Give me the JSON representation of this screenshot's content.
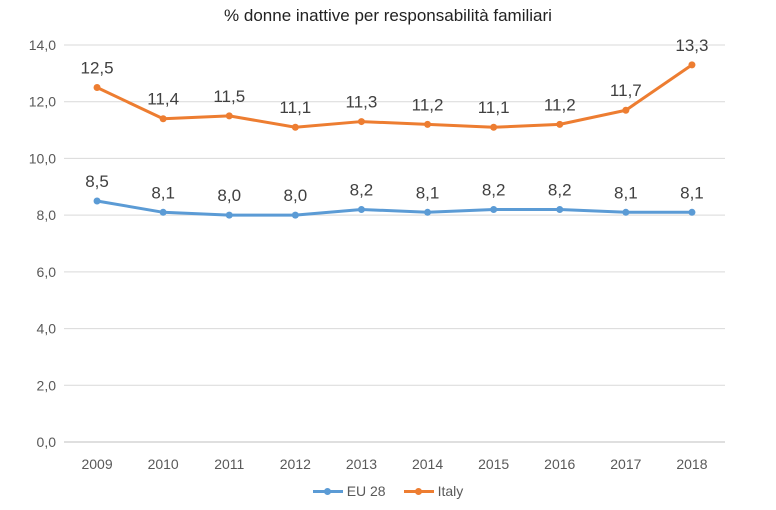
{
  "chart_data": {
    "type": "line",
    "title": "% donne inattive per responsabilità familiari",
    "categories": [
      "2009",
      "2010",
      "2011",
      "2012",
      "2013",
      "2014",
      "2015",
      "2016",
      "2017",
      "2018"
    ],
    "ylim": [
      0,
      14
    ],
    "yticks": [
      "0,0",
      "2,0",
      "4,0",
      "6,0",
      "8,0",
      "10,0",
      "12,0",
      "14,0"
    ],
    "grid": true,
    "legend_position": "bottom",
    "series": [
      {
        "name": "EU 28",
        "color": "#5b9bd5",
        "values": [
          8.5,
          8.1,
          8.0,
          8.0,
          8.2,
          8.1,
          8.2,
          8.2,
          8.1,
          8.1
        ],
        "labels": [
          "8,5",
          "8,1",
          "8,0",
          "8,0",
          "8,2",
          "8,1",
          "8,2",
          "8,2",
          "8,1",
          "8,1"
        ]
      },
      {
        "name": "Italy",
        "color": "#ed7d31",
        "values": [
          12.5,
          11.4,
          11.5,
          11.1,
          11.3,
          11.2,
          11.1,
          11.2,
          11.7,
          13.3
        ],
        "labels": [
          "12,5",
          "11,4",
          "11,5",
          "11,1",
          "11,3",
          "11,2",
          "11,1",
          "11,2",
          "11,7",
          "13,3"
        ]
      }
    ]
  }
}
